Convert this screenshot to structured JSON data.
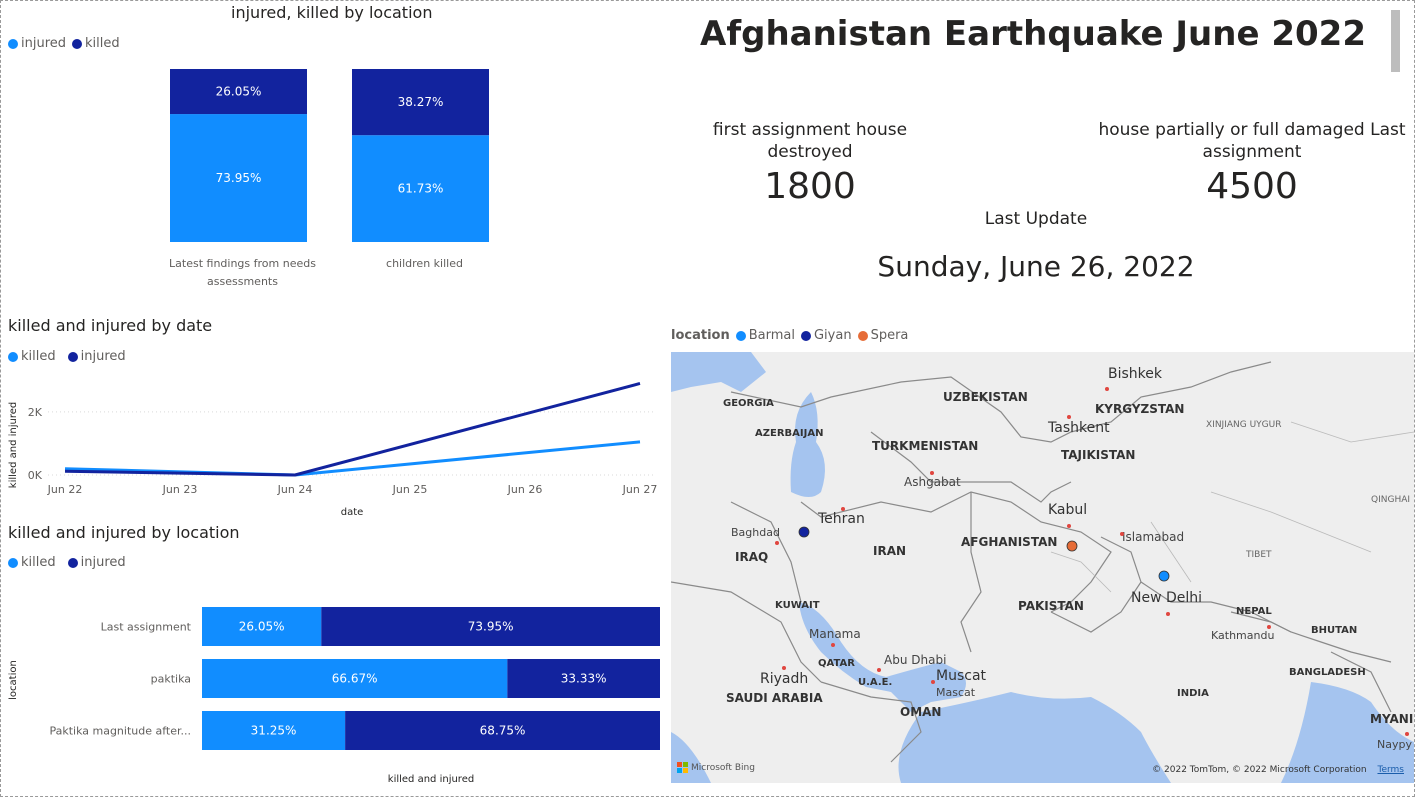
{
  "dashboard": {
    "title": "Afghanistan Earthquake June 2022",
    "cards": [
      {
        "label": "first assignment house destroyed",
        "value": "1800"
      },
      {
        "label": "house partially or full damaged Last assignment",
        "value": "4500"
      }
    ],
    "last_update_label": "Last Update",
    "last_update_value": "Sunday, June 26, 2022"
  },
  "colors": {
    "light_blue": "#118dff",
    "dark_blue": "#12239e",
    "orange": "#e66c37"
  },
  "chart_data": [
    {
      "type": "bar",
      "stacked": "100%",
      "title": "injured, killed by location",
      "legend": [
        "injured",
        "killed"
      ],
      "categories": [
        "Latest findings from needs assessments",
        "children killed"
      ],
      "series": [
        {
          "name": "injured",
          "values": [
            73.95,
            61.73
          ],
          "labels": [
            "73.95%",
            "61.73%"
          ]
        },
        {
          "name": "killed",
          "values": [
            26.05,
            38.27
          ],
          "labels": [
            "26.05%",
            "38.27%"
          ]
        }
      ]
    },
    {
      "type": "line",
      "title": "killed and injured by date",
      "legend": [
        "killed",
        "injured"
      ],
      "xlabel": "date",
      "ylabel": "killed and injured",
      "x": [
        "Jun 22",
        "Jun 23",
        "Jun 24",
        "Jun 25",
        "Jun 26",
        "Jun 27"
      ],
      "yticks": [
        "0K",
        "2K"
      ],
      "ylim": [
        0,
        3200
      ],
      "series": [
        {
          "name": "killed",
          "points": [
            [
              0,
              200
            ],
            [
              2,
              0
            ],
            [
              5,
              1050
            ]
          ]
        },
        {
          "name": "injured",
          "points": [
            [
              0,
              120
            ],
            [
              2,
              0
            ],
            [
              5,
              2900
            ]
          ]
        }
      ]
    },
    {
      "type": "bar",
      "orientation": "horizontal",
      "stacked": "100%",
      "title": "killed and injured by location",
      "legend": [
        "killed",
        "injured"
      ],
      "ylabel": "location",
      "xlabel": "killed and  injured",
      "categories": [
        "Last assignment",
        "paktika",
        "Paktika magnitude after..."
      ],
      "series": [
        {
          "name": "killed",
          "values": [
            26.05,
            66.67,
            31.25
          ],
          "labels": [
            "26.05%",
            "66.67%",
            "31.25%"
          ]
        },
        {
          "name": "injured",
          "values": [
            73.95,
            33.33,
            68.75
          ],
          "labels": [
            "73.95%",
            "33.33%",
            "68.75%"
          ]
        }
      ]
    }
  ],
  "map": {
    "legend_title": "location",
    "legend": [
      "Barmal",
      "Giyan",
      "Spera"
    ],
    "countries": [
      "UZBEKISTAN",
      "KYRGYZSTAN",
      "GEORGIA",
      "AZERBAIJAN",
      "TURKMENISTAN",
      "TAJIKISTAN",
      "IRAQ",
      "IRAN",
      "AFGHANISTAN",
      "KUWAIT",
      "PAKISTAN",
      "NEPAL",
      "BHUTAN",
      "QATAR",
      "U.A.E.",
      "SAUDI ARABIA",
      "OMAN",
      "BANGLADESH",
      "INDIA",
      "MYANI"
    ],
    "cities": [
      "Bishkek",
      "Tashkent",
      "Ashgabat",
      "Tehran",
      "Baghdad",
      "Kabul",
      "Islamabad",
      "New Delhi",
      "Kathmandu",
      "Manama",
      "Abu Dhabi",
      "Muscat",
      "Mascat",
      "Riyadh",
      "Naypy"
    ],
    "regions": [
      "XINJIANG UYGUR",
      "TIBET",
      "QINGHAI"
    ],
    "copyright": "© 2022 TomTom, © 2022 Microsoft Corporation",
    "terms": "Terms",
    "bing": "Microsoft Bing"
  }
}
